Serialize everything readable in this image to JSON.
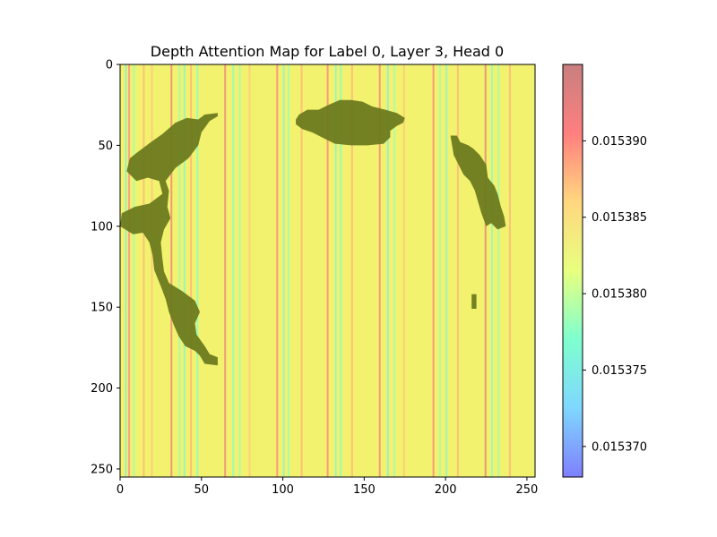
{
  "chart_data": [
    {
      "type": "heatmap",
      "title": "Depth Attention Map for Label 0, Layer 3, Head 0",
      "xlabel": "",
      "ylabel": "",
      "xlim": [
        0,
        255
      ],
      "ylim": [
        255,
        0
      ],
      "x_ticks": [
        0,
        50,
        100,
        150,
        200,
        250
      ],
      "y_ticks": [
        0,
        50,
        100,
        150,
        200,
        250
      ],
      "grid": false,
      "base_fill": "#f2f26e",
      "stripes": [
        {
          "x": 3,
          "value": 0.015375
        },
        {
          "x": 5,
          "value": 0.01539
        },
        {
          "x": 8,
          "value": 0.015378
        },
        {
          "x": 14,
          "value": 0.015388
        },
        {
          "x": 19,
          "value": 0.015387
        },
        {
          "x": 31,
          "value": 0.015392
        },
        {
          "x": 36,
          "value": 0.015378
        },
        {
          "x": 39,
          "value": 0.015376
        },
        {
          "x": 43,
          "value": 0.015388
        },
        {
          "x": 47,
          "value": 0.015377
        },
        {
          "x": 64,
          "value": 0.015392
        },
        {
          "x": 69,
          "value": 0.015377
        },
        {
          "x": 73,
          "value": 0.015378
        },
        {
          "x": 79,
          "value": 0.015387
        },
        {
          "x": 96,
          "value": 0.015391
        },
        {
          "x": 100,
          "value": 0.015376
        },
        {
          "x": 103,
          "value": 0.015378
        },
        {
          "x": 111,
          "value": 0.015388
        },
        {
          "x": 127,
          "value": 0.015391
        },
        {
          "x": 132,
          "value": 0.015376
        },
        {
          "x": 135,
          "value": 0.015377
        },
        {
          "x": 142,
          "value": 0.015388
        },
        {
          "x": 159,
          "value": 0.015392
        },
        {
          "x": 164,
          "value": 0.015375
        },
        {
          "x": 168,
          "value": 0.015378
        },
        {
          "x": 174,
          "value": 0.015387
        },
        {
          "x": 192,
          "value": 0.015391
        },
        {
          "x": 196,
          "value": 0.015378
        },
        {
          "x": 200,
          "value": 0.015376
        },
        {
          "x": 207,
          "value": 0.015388
        },
        {
          "x": 224,
          "value": 0.015393
        },
        {
          "x": 228,
          "value": 0.015377
        },
        {
          "x": 232,
          "value": 0.015378
        },
        {
          "x": 239,
          "value": 0.015388
        }
      ],
      "dark_regions": [
        {
          "color": "#6b7a1e",
          "points": [
            [
              60,
              30
            ],
            [
              52,
              31
            ],
            [
              48,
              34
            ],
            [
              41,
              33
            ],
            [
              34,
              36
            ],
            [
              26,
              43
            ],
            [
              19,
              48
            ],
            [
              11,
              54
            ],
            [
              6,
              58
            ],
            [
              4,
              66
            ],
            [
              10,
              72
            ],
            [
              17,
              70
            ],
            [
              24,
              72
            ],
            [
              26,
              80
            ],
            [
              18,
              86
            ],
            [
              9,
              88
            ],
            [
              1,
              92
            ],
            [
              0,
              100
            ],
            [
              8,
              105
            ],
            [
              14,
              104
            ],
            [
              18,
              110
            ],
            [
              20,
              118
            ],
            [
              21,
              127
            ],
            [
              25,
              137
            ],
            [
              28,
              145
            ],
            [
              30,
              153
            ],
            [
              33,
              161
            ],
            [
              36,
              168
            ],
            [
              40,
              174
            ],
            [
              46,
              177
            ],
            [
              49,
              180
            ],
            [
              52,
              185
            ],
            [
              60,
              186
            ],
            [
              60,
              181
            ],
            [
              55,
              179
            ],
            [
              52,
              174
            ],
            [
              47,
              167
            ],
            [
              46,
              160
            ],
            [
              49,
              153
            ],
            [
              46,
              146
            ],
            [
              38,
              140
            ],
            [
              30,
              135
            ],
            [
              27,
              128
            ],
            [
              26,
              120
            ],
            [
              25,
              110
            ],
            [
              27,
              102
            ],
            [
              31,
              95
            ],
            [
              29,
              88
            ],
            [
              30,
              78
            ],
            [
              28,
              72
            ],
            [
              34,
              64
            ],
            [
              42,
              58
            ],
            [
              48,
              50
            ],
            [
              50,
              42
            ],
            [
              55,
              35
            ],
            [
              60,
              32
            ]
          ]
        },
        {
          "color": "#6b7a1e",
          "points": [
            [
              110,
              31
            ],
            [
              115,
              28
            ],
            [
              122,
              28
            ],
            [
              128,
              25
            ],
            [
              135,
              22
            ],
            [
              142,
              22
            ],
            [
              149,
              23
            ],
            [
              155,
              26
            ],
            [
              163,
              28
            ],
            [
              170,
              30
            ],
            [
              175,
              33
            ],
            [
              174,
              36
            ],
            [
              170,
              38
            ],
            [
              166,
              41
            ],
            [
              166,
              45
            ],
            [
              162,
              49
            ],
            [
              152,
              50
            ],
            [
              142,
              50
            ],
            [
              132,
              49
            ],
            [
              126,
              46
            ],
            [
              118,
              42
            ],
            [
              112,
              40
            ],
            [
              108,
              37
            ],
            [
              108,
              34
            ]
          ]
        },
        {
          "color": "#6b7a1e",
          "points": [
            [
              203,
              44
            ],
            [
              207,
              44
            ],
            [
              209,
              48
            ],
            [
              214,
              50
            ],
            [
              217,
              52
            ],
            [
              221,
              56
            ],
            [
              225,
              62
            ],
            [
              226,
              70
            ],
            [
              230,
              75
            ],
            [
              232,
              80
            ],
            [
              234,
              88
            ],
            [
              236,
              94
            ],
            [
              237,
              100
            ],
            [
              232,
              102
            ],
            [
              228,
              98
            ],
            [
              225,
              100
            ],
            [
              222,
              92
            ],
            [
              220,
              85
            ],
            [
              218,
              78
            ],
            [
              215,
              72
            ],
            [
              211,
              68
            ],
            [
              208,
              62
            ],
            [
              205,
              56
            ],
            [
              204,
              50
            ]
          ]
        },
        {
          "color": "#6b7a1e",
          "points": [
            [
              216,
              142
            ],
            [
              219,
              142
            ],
            [
              219,
              151
            ],
            [
              216,
              151
            ]
          ]
        }
      ]
    },
    {
      "type": "colorbar",
      "vmin": 0.015368,
      "vmax": 0.015395,
      "ticks": [
        0.01537,
        0.015375,
        0.01538,
        0.015385,
        0.01539
      ],
      "tick_labels": [
        "0.015370",
        "0.015375",
        "0.015380",
        "0.015385",
        "0.015390"
      ],
      "colormap": [
        "#7f7fff",
        "#7fd7ff",
        "#7fffcf",
        "#e8ff7f",
        "#ffd77f",
        "#ff7f7f",
        "#c87f7f"
      ]
    }
  ]
}
